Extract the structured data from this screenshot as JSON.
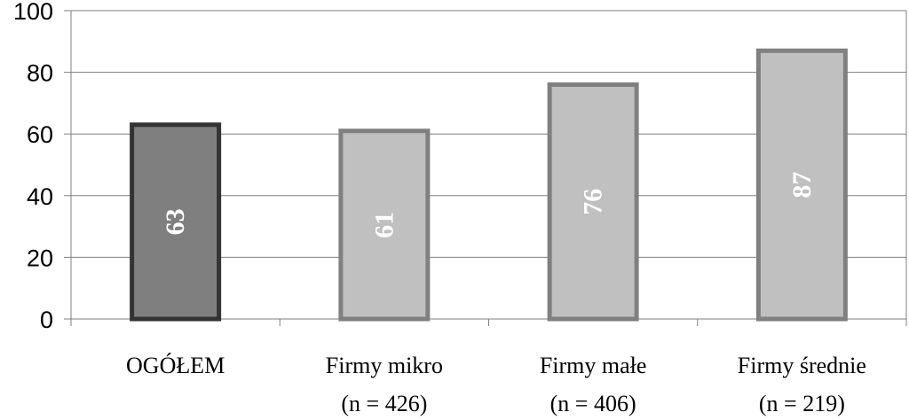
{
  "chart_data": {
    "type": "bar",
    "categories": [
      {
        "line1": "OGÓŁEM",
        "line2": ""
      },
      {
        "line1": "Firmy mikro",
        "line2": "(n = 426)"
      },
      {
        "line1": "Firmy małe",
        "line2": "(n = 406)"
      },
      {
        "line1": "Firmy średnie",
        "line2": "(n = 219)"
      }
    ],
    "values": [
      63,
      61,
      76,
      87
    ],
    "value_labels": [
      "63",
      "61",
      "76",
      "87"
    ],
    "bar_fills": [
      "#7f7f7f",
      "#c0c0c0",
      "#c0c0c0",
      "#c0c0c0"
    ],
    "bar_strokes": [
      "#333333",
      "#808080",
      "#808080",
      "#808080"
    ],
    "ylim": [
      0,
      100
    ],
    "yticks": [
      "0",
      "20",
      "40",
      "60",
      "80",
      "100"
    ],
    "ytick_values": [
      0,
      20,
      40,
      60,
      80,
      100
    ],
    "grid": true,
    "legend": "none",
    "title": "",
    "xlabel": "",
    "ylabel": ""
  }
}
